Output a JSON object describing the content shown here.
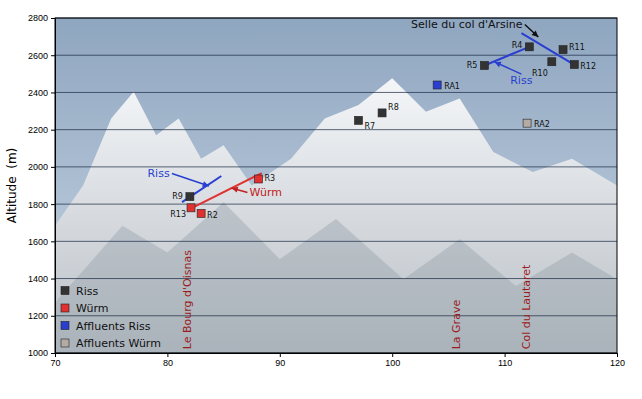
{
  "chart_data": {
    "type": "scatter",
    "y_label": "Altitude  (m)",
    "xlim": [
      70,
      120
    ],
    "ylim": [
      1000,
      2800
    ],
    "xticks": [
      70,
      80,
      90,
      100,
      110,
      120
    ],
    "yticks": [
      1000,
      1200,
      1400,
      1600,
      1800,
      2000,
      2200,
      2400,
      2600,
      2800
    ],
    "grid": true,
    "legend": "lower left",
    "series": [
      {
        "name": "Riss",
        "color": "#333333",
        "marker": "square",
        "x": [
          82.0,
          97.0,
          99.1,
          108.2,
          112.2,
          114.2,
          115.2,
          116.2
        ],
        "values": [
          1840,
          2250,
          2290,
          2545,
          2645,
          2565,
          2630,
          2550
        ],
        "labels": [
          "R9",
          "R7",
          "R8",
          "R5",
          "R4",
          "R10",
          "R11",
          "R12"
        ]
      },
      {
        "name": "Würm",
        "color": "#e03030",
        "marker": "square",
        "x": [
          82.1,
          83.0,
          88.1
        ],
        "values": [
          1780,
          1750,
          1935
        ],
        "labels": [
          "R13",
          "R2",
          "R3"
        ]
      },
      {
        "name": "Affluents Riss",
        "color": "#2a3fd0",
        "marker": "square",
        "x": [
          104.0
        ],
        "values": [
          2440
        ],
        "labels": [
          "RA1"
        ]
      },
      {
        "name": "Affluents Würm",
        "color": "#b4aca4",
        "marker": "square",
        "x": [
          112.0
        ],
        "values": [
          2235
        ],
        "labels": [
          "RA2"
        ]
      }
    ],
    "lines": [
      {
        "color": "#2a3fd0",
        "x": [
          81.3,
          84.8
        ],
        "y": [
          1811,
          1951
        ]
      },
      {
        "color": "#e03030",
        "x": [
          81.8,
          88.4
        ],
        "y": [
          1768,
          1967
        ]
      },
      {
        "color": "#2a3fd0",
        "x": [
          108.2,
          112.2
        ],
        "y": [
          2545,
          2645
        ]
      },
      {
        "color": "#2a3fd0",
        "x": [
          111.5,
          116.4
        ],
        "y": [
          2719,
          2542
        ]
      }
    ],
    "annotations": [
      {
        "text": "Selle du col d'Arsine",
        "color": "#111111",
        "x": 111.6,
        "y": 2746,
        "arrow_x": 113.0,
        "arrow_y": 2698
      },
      {
        "text": "Riss",
        "color": "#2a3fd0",
        "x": 110.5,
        "y": 2445,
        "arrow_x": 109.1,
        "arrow_y": 2564
      },
      {
        "text": "Würm",
        "color": "#c02020",
        "x": 87.3,
        "y": 1844,
        "arrow_x": 85.7,
        "arrow_y": 1887
      },
      {
        "text": "Riss",
        "color": "#2a3fd0",
        "x": 80.2,
        "y": 1946,
        "arrow_x": 83.7,
        "arrow_y": 1897
      }
    ],
    "vertical_labels": [
      {
        "text": "Le Bourg d'Oisnas",
        "color": "#9a1c1c",
        "x": 81.7,
        "y": 1020
      },
      {
        "text": "La Grave",
        "color": "#9a1c1c",
        "x": 105.7,
        "y": 1020
      },
      {
        "text": "Col du Lautaret",
        "color": "#9a1c1c",
        "x": 111.9,
        "y": 1020
      }
    ]
  }
}
